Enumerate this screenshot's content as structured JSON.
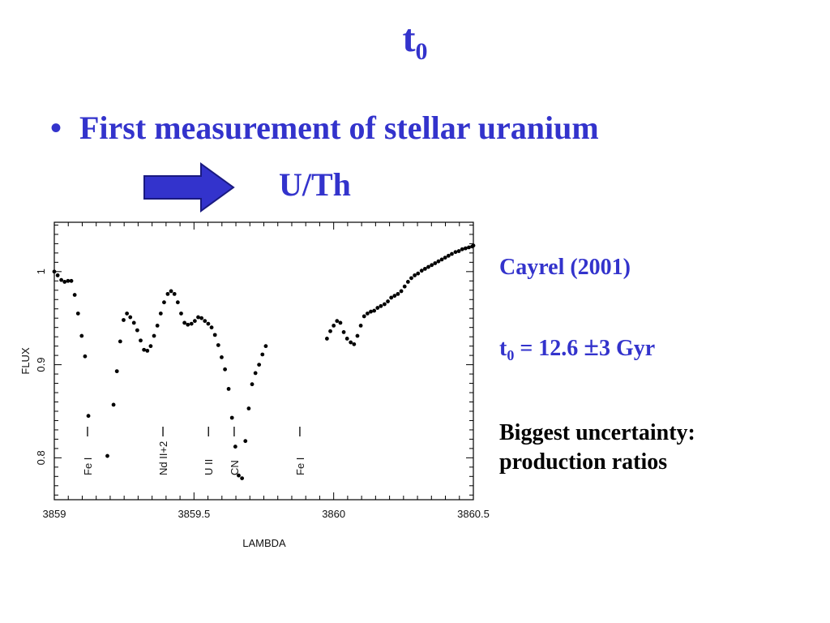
{
  "slide": {
    "title_main": "t",
    "title_sub": "0",
    "bullet": "First measurement of stellar uranium",
    "ratio": "U/Th",
    "citation": "Cayrel (2001)",
    "result_main": "t",
    "result_sub": "0",
    "result_value": " = 12.6 ",
    "result_pm": "±",
    "result_tail": "3 Gyr",
    "note_line1": "Biggest uncertainty:",
    "note_line2": "production ratios",
    "accent_color": "#3333cc",
    "arrow_color": "#3333cc"
  },
  "chart_data": {
    "type": "scatter",
    "xlabel": "LAMBDA",
    "ylabel": "FLUX",
    "xlim": [
      3859.0,
      3860.5
    ],
    "ylim": [
      0.755,
      1.053
    ],
    "xticks": [
      3859.0,
      3859.5,
      3860.0,
      3860.5
    ],
    "xtick_labels": [
      "3859",
      "3859.5",
      "3860",
      "3860.5"
    ],
    "yticks": [
      0.8,
      0.9,
      1.0
    ],
    "ytick_labels": [
      "0.8",
      "0.9",
      "1"
    ],
    "grid": false,
    "legend": "none",
    "lines": [
      {
        "label": "Fe I",
        "x": 3859.145
      },
      {
        "label": "Nd II+2",
        "x": 3859.415
      },
      {
        "label": "U II",
        "x": 3859.578
      },
      {
        "label": "CN",
        "x": 3859.67
      },
      {
        "label": "Fe I",
        "x": 3859.905
      }
    ],
    "points": {
      "x": [
        3859.0,
        3859.012,
        3859.025,
        3859.037,
        3859.049,
        3859.061,
        3859.073,
        3859.085,
        3859.098,
        3859.11,
        3859.122,
        3859.19,
        3859.212,
        3859.224,
        3859.236,
        3859.248,
        3859.26,
        3859.272,
        3859.285,
        3859.297,
        3859.309,
        3859.321,
        3859.333,
        3859.345,
        3859.357,
        3859.369,
        3859.381,
        3859.393,
        3859.406,
        3859.418,
        3859.43,
        3859.442,
        3859.454,
        3859.466,
        3859.478,
        3859.491,
        3859.503,
        3859.515,
        3859.527,
        3859.539,
        3859.551,
        3859.563,
        3859.575,
        3859.587,
        3859.599,
        3859.611,
        3859.624,
        3859.636,
        3859.648,
        3859.66,
        3859.672,
        3859.684,
        3859.696,
        3859.708,
        3859.72,
        3859.733,
        3859.745,
        3859.757,
        3859.976,
        3859.988,
        3860.0,
        3860.012,
        3860.024,
        3860.036,
        3860.048,
        3860.061,
        3860.073,
        3860.085,
        3860.097,
        3860.109,
        3860.121,
        3860.133,
        3860.145,
        3860.157,
        3860.169,
        3860.182,
        3860.194,
        3860.206,
        3860.218,
        3860.23,
        3860.242,
        3860.254,
        3860.266,
        3860.278,
        3860.29,
        3860.302,
        3860.315,
        3860.327,
        3860.339,
        3860.351,
        3860.363,
        3860.375,
        3860.387,
        3860.399,
        3860.411,
        3860.423,
        3860.436,
        3860.448,
        3860.46,
        3860.472,
        3860.484,
        3860.496,
        3860.5
      ],
      "y": [
        1.0,
        0.996,
        0.991,
        0.989,
        0.99,
        0.99,
        0.975,
        0.955,
        0.931,
        0.909,
        0.845,
        0.802,
        0.857,
        0.893,
        0.925,
        0.948,
        0.955,
        0.951,
        0.945,
        0.937,
        0.926,
        0.916,
        0.915,
        0.92,
        0.931,
        0.942,
        0.955,
        0.967,
        0.976,
        0.979,
        0.976,
        0.967,
        0.955,
        0.945,
        0.943,
        0.944,
        0.947,
        0.951,
        0.95,
        0.947,
        0.944,
        0.94,
        0.932,
        0.921,
        0.908,
        0.895,
        0.874,
        0.843,
        0.812,
        0.781,
        0.778,
        0.818,
        0.853,
        0.879,
        0.891,
        0.9,
        0.911,
        0.92,
        0.928,
        0.936,
        0.942,
        0.947,
        0.945,
        0.935,
        0.928,
        0.924,
        0.922,
        0.931,
        0.942,
        0.952,
        0.955,
        0.957,
        0.958,
        0.961,
        0.963,
        0.965,
        0.968,
        0.972,
        0.974,
        0.976,
        0.979,
        0.984,
        0.989,
        0.993,
        0.996,
        0.998,
        1.001,
        1.003,
        1.005,
        1.007,
        1.009,
        1.011,
        1.013,
        1.015,
        1.017,
        1.019,
        1.021,
        1.022,
        1.024,
        1.025,
        1.026,
        1.027,
        1.028
      ]
    }
  }
}
